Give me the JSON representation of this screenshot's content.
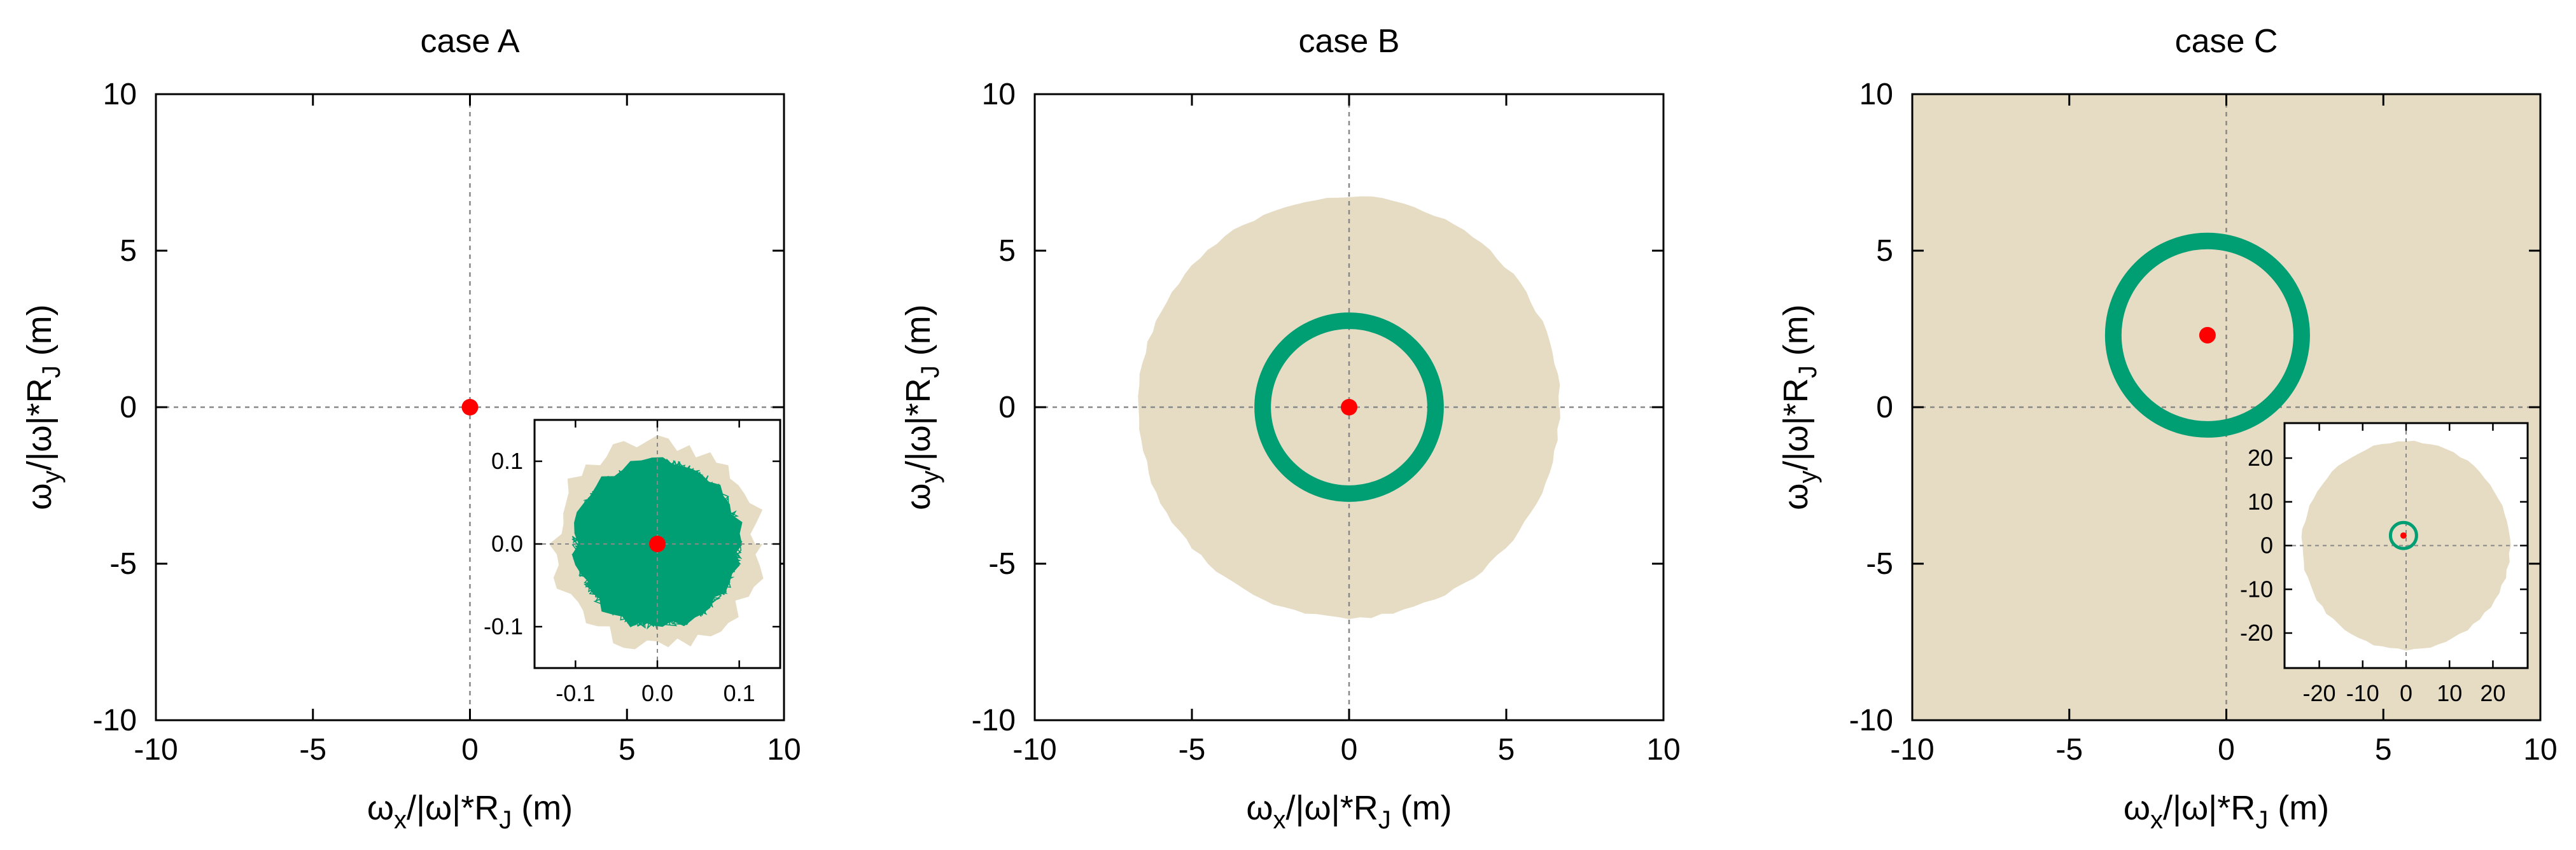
{
  "colors": {
    "beige": "#e6dcc4",
    "green": "#009e73",
    "red": "#ff0000",
    "axis": "#000000",
    "zero_line": "#888888"
  },
  "chart_data": [
    {
      "id": "A",
      "type": "scatter",
      "title": "case A",
      "xlabel": "ωx/|ω|*RJ (m)",
      "ylabel": "ωy/|ω|*RJ (m)",
      "xlim": [
        -10,
        10
      ],
      "ylim": [
        -10,
        10
      ],
      "xticks": [
        -10,
        -5,
        0,
        5,
        10
      ],
      "yticks": [
        -10,
        -5,
        0,
        5,
        10
      ],
      "zero_lines": true,
      "background": "white",
      "series": [
        {
          "kind": "point",
          "color": "red",
          "points": [
            [
              0,
              0
            ]
          ]
        }
      ],
      "inset": {
        "location": "lower-right",
        "xlim": [
          -0.15,
          0.15
        ],
        "ylim": [
          -0.15,
          0.15
        ],
        "xticks": [
          -0.1,
          0.0,
          0.1
        ],
        "yticks": [
          -0.1,
          0.0,
          0.1
        ],
        "xtick_labels": [
          "-0.1",
          "0.0",
          "0.1"
        ],
        "ytick_labels": [
          "-0.1",
          "0.0",
          "0.1"
        ],
        "beige_blob_radius": 0.125,
        "green_blob_radius": 0.11,
        "center": [
          0,
          0
        ]
      }
    },
    {
      "id": "B",
      "type": "scatter",
      "title": "case B",
      "xlabel": "ωx/|ω|*RJ (m)",
      "ylabel": "ωy/|ω|*RJ (m)",
      "xlim": [
        -10,
        10
      ],
      "ylim": [
        -10,
        10
      ],
      "xticks": [
        -10,
        -5,
        0,
        5,
        10
      ],
      "yticks": [
        -10,
        -5,
        0,
        5,
        10
      ],
      "zero_lines": true,
      "background": "white",
      "beige_disk": {
        "center": [
          0,
          0
        ],
        "radius": 6.7
      },
      "green_ring": {
        "center": [
          0,
          0
        ],
        "radius": 2.75
      },
      "series": [
        {
          "kind": "point",
          "color": "red",
          "points": [
            [
              0,
              0
            ]
          ]
        }
      ]
    },
    {
      "id": "C",
      "type": "scatter",
      "title": "case C",
      "xlabel": "ωx/|ω|*RJ (m)",
      "ylabel": "ωy/|ω|*RJ (m)",
      "xlim": [
        -10,
        10
      ],
      "ylim": [
        -10,
        10
      ],
      "xticks": [
        -10,
        -5,
        0,
        5,
        10
      ],
      "yticks": [
        -10,
        -5,
        0,
        5,
        10
      ],
      "zero_lines": true,
      "background": "beige",
      "green_ring": {
        "center": [
          -0.6,
          2.3
        ],
        "radius": 3.0
      },
      "series": [
        {
          "kind": "point",
          "color": "red",
          "points": [
            [
              -0.6,
              2.3
            ]
          ]
        }
      ],
      "inset": {
        "location": "lower-right",
        "xlim": [
          -28,
          28
        ],
        "ylim": [
          -28,
          28
        ],
        "xticks": [
          -20,
          -10,
          0,
          10,
          20
        ],
        "yticks": [
          -20,
          -10,
          0,
          10,
          20
        ],
        "xtick_labels": [
          "-20",
          "-10",
          "0",
          "10",
          "20"
        ],
        "ytick_labels": [
          "-20",
          "-10",
          "0",
          "10",
          "20"
        ],
        "beige_disk_radius": 24,
        "green_ring_radius": 3.0,
        "center": [
          -0.6,
          2.3
        ]
      }
    }
  ]
}
